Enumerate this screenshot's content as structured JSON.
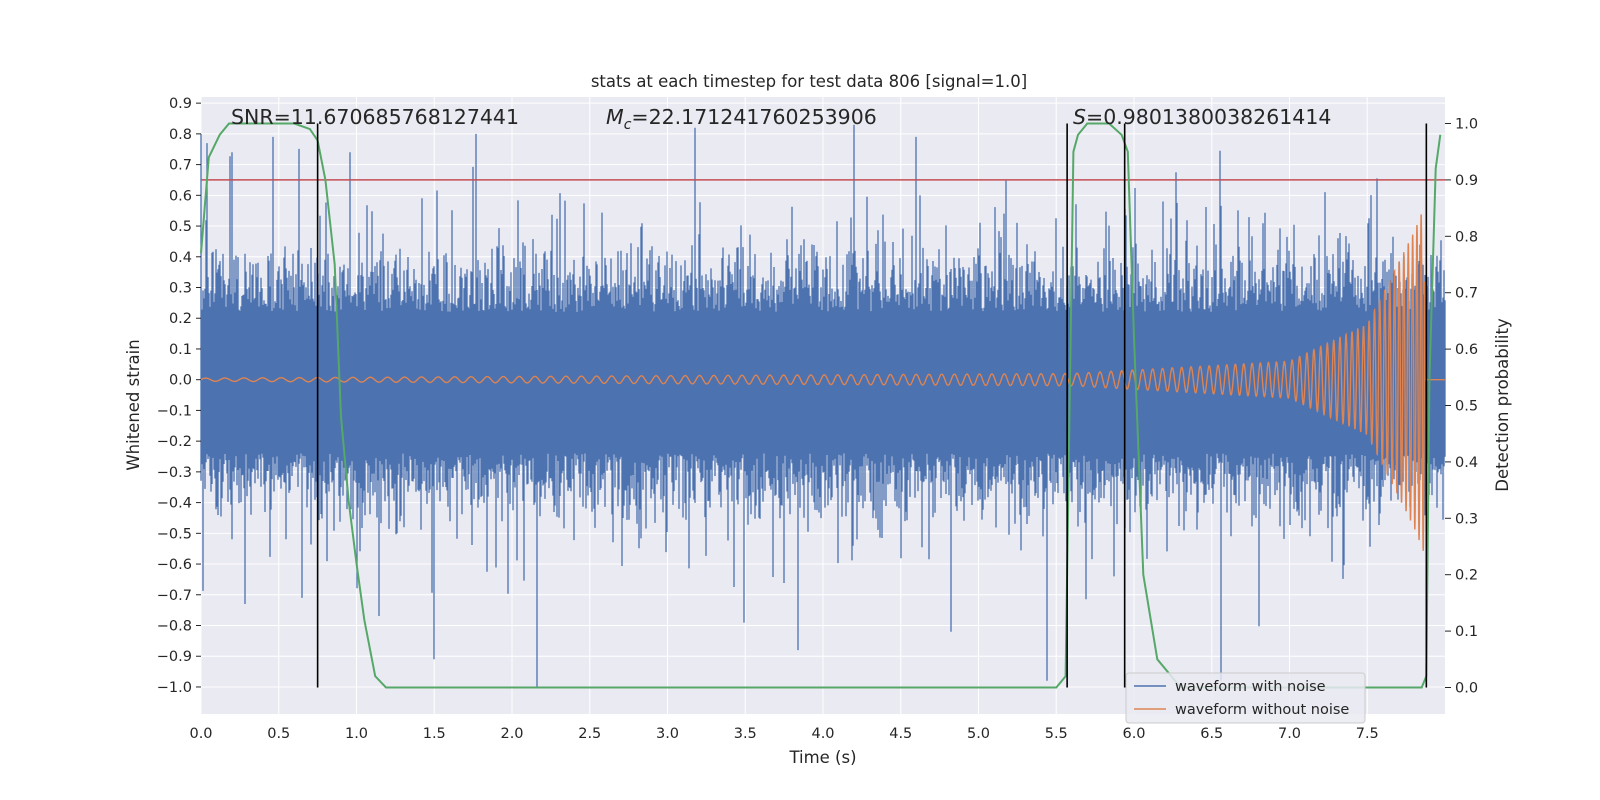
{
  "chart_data": {
    "type": "line",
    "title": "stats at each timestep for test data 806 [signal=1.0]",
    "xlabel": "Time (s)",
    "ylabel": "Whitened strain",
    "y2label": "Detection probability",
    "xlim": [
      0.0,
      8.0
    ],
    "ylim": [
      -1.088,
      0.92
    ],
    "y2lim": [
      -0.047,
      1.047
    ],
    "grid": true,
    "legend_position": "bottom-right",
    "x_ticks": [
      "0.0",
      "0.5",
      "1.0",
      "1.5",
      "2.0",
      "2.5",
      "3.0",
      "3.5",
      "4.0",
      "4.5",
      "5.0",
      "5.5",
      "6.0",
      "6.5",
      "7.0",
      "7.5"
    ],
    "y_ticks": [
      "0.9",
      "0.8",
      "0.7",
      "0.6",
      "0.5",
      "0.4",
      "0.3",
      "0.2",
      "0.1",
      "0.0",
      "−0.1",
      "−0.2",
      "−0.3",
      "−0.4",
      "−0.5",
      "−0.6",
      "−0.7",
      "−0.8",
      "−0.9",
      "−1.0"
    ],
    "y2_ticks": [
      "1.0",
      "0.9",
      "0.8",
      "0.7",
      "0.6",
      "0.5",
      "0.4",
      "0.3",
      "0.2",
      "0.1",
      "0.0"
    ],
    "annotations": {
      "snr": "SNR=11.670685768127441",
      "mc_symbol": "M",
      "mc_sub": "c",
      "mc_value": "=22.171241760253906",
      "s_symbol": "S",
      "s_value": "=0.9801380038261414"
    },
    "threshold": {
      "axis": "y2",
      "value": 0.9
    },
    "vertical_lines": [
      0.75,
      5.57,
      5.94,
      7.88
    ],
    "series": [
      {
        "name": "waveform with noise",
        "axis": "y",
        "description_range": [
          -1.0,
          0.84
        ],
        "peaks": [
          {
            "x": 0.0,
            "y": 0.8
          },
          {
            "x": 0.2,
            "y": 0.74
          },
          {
            "x": 0.46,
            "y": 0.79
          },
          {
            "x": 0.96,
            "y": 0.74
          },
          {
            "x": 1.77,
            "y": 0.8
          },
          {
            "x": 3.18,
            "y": 0.82
          },
          {
            "x": 4.2,
            "y": 0.83
          },
          {
            "x": 4.6,
            "y": 0.79
          },
          {
            "x": 2.16,
            "y": -1.0
          },
          {
            "x": 0.28,
            "y": -0.73
          },
          {
            "x": 0.65,
            "y": -0.71
          },
          {
            "x": 1.5,
            "y": -0.91
          },
          {
            "x": 5.44,
            "y": -0.98
          },
          {
            "x": 6.56,
            "y": -0.98
          },
          {
            "x": 3.84,
            "y": -0.88
          },
          {
            "x": 4.82,
            "y": -0.82
          }
        ]
      },
      {
        "name": "waveform without noise",
        "axis": "y",
        "amplitude_at_x": [
          [
            0.0,
            0.005
          ],
          [
            5.6,
            0.02
          ],
          [
            7.0,
            0.06
          ],
          [
            7.5,
            0.18
          ],
          [
            7.8,
            0.48
          ],
          [
            7.87,
            0.57
          ]
        ],
        "frequency_hz_at_x": [
          [
            0.0,
            8
          ],
          [
            5.6,
            13
          ],
          [
            7.0,
            20
          ],
          [
            7.5,
            28
          ],
          [
            7.87,
            38
          ]
        ]
      },
      {
        "name": "detection probability",
        "axis": "y2",
        "x": [
          0.0,
          0.05,
          0.12,
          0.18,
          0.4,
          0.6,
          0.7,
          0.75,
          0.8,
          0.86,
          0.9,
          0.95,
          1.0,
          1.05,
          1.12,
          1.19,
          5.5,
          5.56,
          5.61,
          5.64,
          5.7,
          5.84,
          5.92,
          5.96,
          6.0,
          6.06,
          6.15,
          6.3,
          7.85,
          7.88,
          7.9,
          7.94,
          7.97
        ],
        "y": [
          0.77,
          0.94,
          0.98,
          1.0,
          1.0,
          1.0,
          0.99,
          0.97,
          0.9,
          0.75,
          0.48,
          0.33,
          0.22,
          0.12,
          0.02,
          0.0,
          0.0,
          0.02,
          0.95,
          0.98,
          1.0,
          1.0,
          0.98,
          0.95,
          0.62,
          0.2,
          0.05,
          0.0,
          0.0,
          0.02,
          0.55,
          0.92,
          0.98
        ]
      }
    ],
    "legend": [
      "waveform with noise",
      "waveform without noise"
    ],
    "colors": {
      "background": "#eaeaf2",
      "grid": "#ffffff",
      "noisy": "#4c72b0",
      "clean": "#dd8452",
      "probability": "#55a868",
      "threshold": "#c44e52",
      "vline": "#000000"
    }
  }
}
